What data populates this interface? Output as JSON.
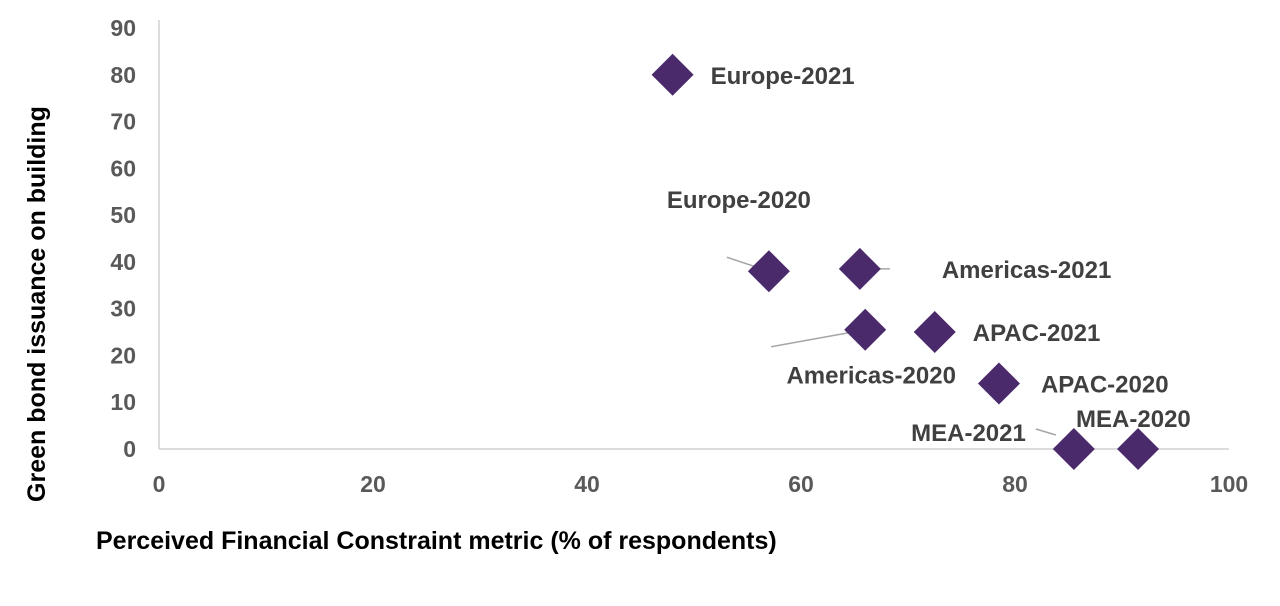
{
  "chart_data": {
    "type": "scatter",
    "title": "",
    "xlabel": "Perceived Financial Constraint metric (% of respondents)",
    "ylabel": "Green bond issuance on building",
    "xlim": [
      0,
      100
    ],
    "ylim": [
      0,
      90
    ],
    "xticks": [
      "0",
      "20",
      "40",
      "60",
      "80",
      "100"
    ],
    "yticks": [
      "0",
      "10",
      "20",
      "30",
      "40",
      "50",
      "60",
      "70",
      "80",
      "90"
    ],
    "grid": false,
    "legend": "none",
    "marker": "diamond",
    "colors": {
      "marker": "#4b2a6b",
      "axis": "#d0d0d0",
      "leader": "#a6a6a6"
    },
    "points": [
      {
        "label": "Europe-2021",
        "x": 48,
        "y": 80
      },
      {
        "label": "Europe-2020",
        "x": 57,
        "y": 38
      },
      {
        "label": "Americas-2021",
        "x": 65.5,
        "y": 38.5
      },
      {
        "label": "Americas-2020",
        "x": 66,
        "y": 25.5
      },
      {
        "label": "APAC-2021",
        "x": 72.5,
        "y": 25
      },
      {
        "label": "APAC-2020",
        "x": 78.5,
        "y": 14
      },
      {
        "label": "MEA-2021",
        "x": 85.5,
        "y": 0
      },
      {
        "label": "MEA-2020",
        "x": 91.5,
        "y": 0
      }
    ]
  }
}
